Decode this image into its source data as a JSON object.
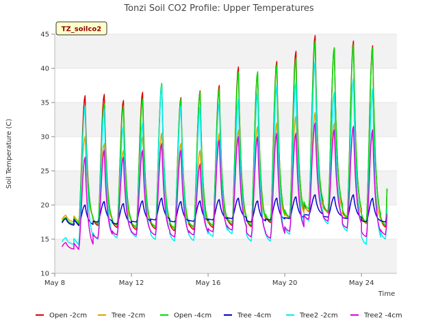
{
  "chart_data": {
    "type": "line",
    "title": "Tonzi Soil CO2 Profile: Upper Temperatures",
    "badge": "TZ_soilco2",
    "xlabel": "Time",
    "ylabel": "Soil Temperature (C)",
    "ylim": [
      10,
      45
    ],
    "yticks": [
      10,
      15,
      20,
      25,
      30,
      35,
      40,
      45
    ],
    "xlim": [
      8.0,
      25.85
    ],
    "xticks": [
      {
        "pos": 8,
        "label": "May 8"
      },
      {
        "pos": 12,
        "label": "May 12"
      },
      {
        "pos": 16,
        "label": "May 16"
      },
      {
        "pos": 20,
        "label": "May 20"
      },
      {
        "pos": 24,
        "label": "May 24"
      }
    ],
    "grid": "horizontal bands",
    "legend_position": "bottom",
    "days": [
      8,
      9,
      10,
      11,
      12,
      13,
      14,
      15,
      16,
      17,
      18,
      19,
      20,
      21,
      22,
      23,
      24,
      25
    ],
    "series": [
      {
        "name": "Open -2cm",
        "color": "#dd0000",
        "max": [
          null,
          36.0,
          36.2,
          35.3,
          36.5,
          37.5,
          35.7,
          36.7,
          37.5,
          40.2,
          39.3,
          41.0,
          42.5,
          44.8,
          43.0,
          44.0,
          43.3,
          43.5
        ],
        "min": [
          null,
          17.0,
          16.8,
          16.5,
          16.2,
          16.3,
          16.0,
          16.2,
          16.5,
          16.8,
          16.6,
          17.2,
          17.8,
          18.8,
          18.6,
          17.8,
          17.0,
          16.5
        ]
      },
      {
        "name": "Tree -2cm",
        "color": "#e69f00",
        "max": [
          null,
          30.0,
          29.0,
          28.0,
          30.0,
          30.5,
          29.0,
          28.0,
          30.5,
          31.0,
          31.5,
          32.0,
          33.0,
          33.5,
          32.0,
          31.5,
          31.0,
          31.0
        ],
        "min": [
          null,
          17.5,
          17.2,
          17.0,
          16.8,
          16.8,
          16.6,
          16.8,
          17.0,
          17.4,
          17.2,
          17.6,
          18.0,
          19.0,
          18.8,
          18.0,
          17.2,
          17.0
        ]
      },
      {
        "name": "Open -4cm",
        "color": "#00dd00",
        "max": [
          null,
          34.5,
          34.8,
          34.5,
          35.5,
          37.8,
          35.5,
          36.5,
          37.0,
          39.5,
          39.5,
          40.5,
          41.5,
          44.0,
          43.0,
          43.5,
          43.0,
          43.0
        ],
        "min": [
          null,
          17.2,
          17.0,
          16.8,
          16.5,
          16.6,
          16.3,
          16.5,
          16.8,
          17.0,
          16.8,
          17.4,
          18.0,
          19.2,
          18.8,
          18.0,
          17.2,
          16.8
        ]
      },
      {
        "name": "Tree -4cm",
        "color": "#0000cc",
        "max": [
          null,
          20.0,
          20.5,
          20.2,
          20.6,
          21.0,
          20.5,
          20.6,
          20.8,
          21.0,
          20.6,
          21.0,
          21.2,
          21.5,
          21.2,
          21.5,
          21.0,
          21.0
        ],
        "min": [
          null,
          17.0,
          17.5,
          17.2,
          17.5,
          17.8,
          17.5,
          17.6,
          17.8,
          18.0,
          17.5,
          17.8,
          18.0,
          18.5,
          18.2,
          18.0,
          17.5,
          17.5
        ]
      },
      {
        "name": "Tree2 -2cm",
        "color": "#00eeee",
        "max": [
          null,
          34.5,
          34.0,
          31.5,
          32.0,
          37.5,
          34.5,
          34.5,
          35.0,
          35.5,
          36.5,
          37.5,
          38.0,
          41.0,
          36.5,
          38.5,
          37.0,
          36.5
        ],
        "min": [
          null,
          14.2,
          14.8,
          15.0,
          15.2,
          14.8,
          14.5,
          14.6,
          15.2,
          15.6,
          14.5,
          14.5,
          15.5,
          17.5,
          17.0,
          16.0,
          14.0,
          14.8
        ]
      },
      {
        "name": "Tree2 -4cm",
        "color": "#dd00dd",
        "max": [
          null,
          27.0,
          28.0,
          27.0,
          28.0,
          29.0,
          28.0,
          26.0,
          29.5,
          30.0,
          30.0,
          30.5,
          30.5,
          32.0,
          31.0,
          31.5,
          31.0,
          30.5
        ],
        "min": [
          null,
          13.5,
          15.0,
          15.5,
          15.5,
          15.5,
          15.2,
          15.5,
          16.0,
          16.2,
          15.2,
          15.0,
          16.0,
          17.8,
          17.5,
          16.5,
          15.2,
          15.5
        ]
      }
    ]
  }
}
